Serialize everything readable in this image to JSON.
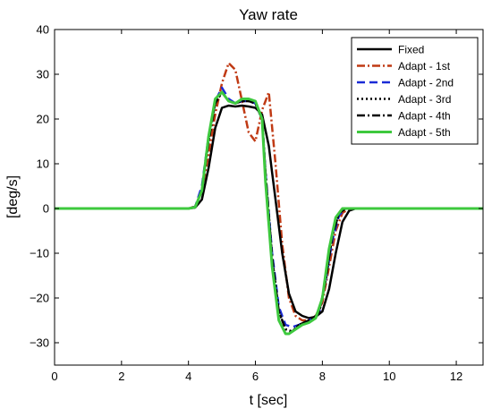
{
  "chart_data": {
    "type": "line",
    "title": "Yaw rate",
    "xlabel": "t [sec]",
    "ylabel": "[deg/s]",
    "xlim": [
      0,
      12.8
    ],
    "ylim": [
      -35,
      40
    ],
    "xticks": [
      0,
      2,
      4,
      6,
      8,
      10,
      12
    ],
    "yticks": [
      -30,
      -20,
      -10,
      0,
      10,
      20,
      30,
      40
    ],
    "grid": false,
    "legend_position": "top-right",
    "series": [
      {
        "name": "Fixed",
        "color": "#000000",
        "dash": "solid",
        "x": [
          0,
          4.0,
          4.2,
          4.4,
          4.6,
          4.8,
          5.0,
          5.2,
          5.4,
          5.6,
          5.8,
          6.0,
          6.2,
          6.4,
          6.5,
          6.6,
          6.8,
          7.0,
          7.2,
          7.4,
          7.6,
          7.8,
          8.0,
          8.2,
          8.4,
          8.6,
          8.8,
          9.0,
          12.8
        ],
        "y": [
          0,
          0,
          0.2,
          2,
          9,
          18,
          22.5,
          23,
          22.8,
          23,
          22.8,
          22.5,
          21,
          14,
          8,
          2,
          -10,
          -19,
          -23,
          -24,
          -24.5,
          -24.2,
          -23,
          -18,
          -10,
          -3,
          -0.5,
          0,
          0
        ]
      },
      {
        "name": "Adapt - 1st",
        "color": "#c03a14",
        "dash": "dashdot",
        "x": [
          0,
          4.0,
          4.2,
          4.4,
          4.6,
          4.8,
          5.0,
          5.2,
          5.4,
          5.6,
          5.8,
          6.0,
          6.2,
          6.4,
          6.6,
          6.8,
          7.0,
          7.2,
          7.4,
          7.6,
          7.8,
          8.0,
          8.2,
          8.4,
          8.6,
          8.8,
          12.8
        ],
        "y": [
          0,
          0,
          0.5,
          4,
          12,
          21,
          28,
          32.5,
          31,
          24,
          17,
          15,
          22,
          26,
          10,
          -8,
          -20,
          -24,
          -25,
          -25,
          -24,
          -21,
          -13,
          -5,
          -1,
          0,
          0
        ]
      },
      {
        "name": "Adapt - 2nd",
        "color": "#1a2bd6",
        "dash": "dashed",
        "x": [
          0,
          4.0,
          4.2,
          4.4,
          4.6,
          4.8,
          5.0,
          5.2,
          5.4,
          5.6,
          5.8,
          6.0,
          6.2,
          6.3,
          6.5,
          6.7,
          6.9,
          7.1,
          7.3,
          7.6,
          7.9,
          8.1,
          8.3,
          8.5,
          8.7,
          12.8
        ],
        "y": [
          0,
          0,
          0.4,
          5,
          16,
          24,
          27,
          24.5,
          23.5,
          24,
          24,
          23.5,
          20,
          8,
          -10,
          -22,
          -26,
          -26.5,
          -26,
          -25,
          -23.5,
          -16,
          -7,
          -1.5,
          0,
          0
        ]
      },
      {
        "name": "Adapt - 3rd",
        "color": "#000000",
        "dash": "dotted",
        "x": [
          0,
          4.0,
          4.2,
          4.4,
          4.6,
          4.8,
          5.0,
          5.2,
          5.4,
          5.6,
          5.8,
          6.0,
          6.2,
          6.3,
          6.5,
          6.7,
          6.9,
          7.1,
          7.3,
          7.6,
          7.9,
          8.1,
          8.3,
          8.5,
          8.7,
          12.8
        ],
        "y": [
          0,
          0,
          0.3,
          4,
          15,
          23.5,
          26,
          24,
          23.5,
          24,
          24,
          23.5,
          20,
          8,
          -11,
          -23,
          -27,
          -27.5,
          -26,
          -25,
          -23.5,
          -16,
          -6,
          -1,
          0,
          0
        ]
      },
      {
        "name": "Adapt - 4th",
        "color": "#000000",
        "dash": "dashdot",
        "x": [
          0,
          4.0,
          4.2,
          4.4,
          4.6,
          4.8,
          5.0,
          5.2,
          5.4,
          5.6,
          5.8,
          6.0,
          6.2,
          6.3,
          6.5,
          6.7,
          6.9,
          7.1,
          7.3,
          7.6,
          7.9,
          8.1,
          8.3,
          8.5,
          8.7,
          12.8
        ],
        "y": [
          0,
          0,
          0.3,
          4,
          15,
          23.5,
          26,
          24,
          23.5,
          24,
          24,
          23.5,
          20,
          8,
          -11,
          -23,
          -27,
          -27.5,
          -26,
          -25,
          -23.5,
          -16,
          -6,
          -1,
          0,
          0
        ]
      },
      {
        "name": "Adapt - 5th",
        "color": "#3ec93e",
        "dash": "solid",
        "x": [
          0,
          4.0,
          4.2,
          4.4,
          4.6,
          4.8,
          5.0,
          5.2,
          5.4,
          5.6,
          5.8,
          6.0,
          6.2,
          6.3,
          6.5,
          6.7,
          6.9,
          7.0,
          7.2,
          7.4,
          7.6,
          7.8,
          8.0,
          8.2,
          8.4,
          8.6,
          12.8
        ],
        "y": [
          0,
          0,
          0.3,
          4,
          16,
          24.5,
          26,
          24,
          23.5,
          24.5,
          24.5,
          24,
          20,
          6,
          -13,
          -25,
          -28,
          -28,
          -27,
          -26,
          -25.5,
          -24.5,
          -20,
          -9,
          -2,
          0,
          0
        ]
      }
    ]
  }
}
